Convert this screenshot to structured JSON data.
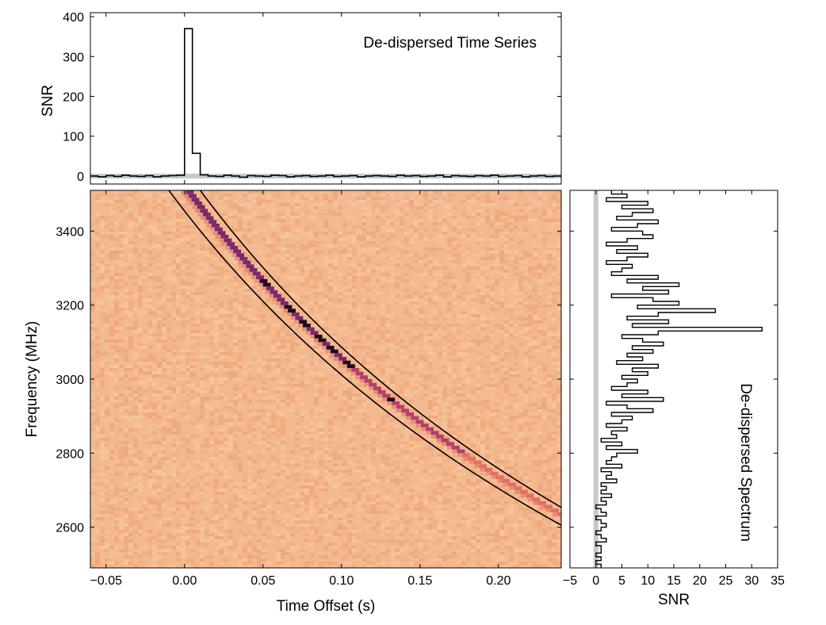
{
  "chart_data": [
    {
      "panel": "time-series",
      "type": "line",
      "title": "De-dispersed Time Series",
      "ylabel": "SNR",
      "xlim": [
        -0.06,
        0.24
      ],
      "ylim": [
        -20,
        410
      ],
      "yticks": [
        0,
        100,
        200,
        300,
        400
      ],
      "step": 0.005,
      "x": [
        -0.06,
        -0.055,
        -0.05,
        -0.045,
        -0.04,
        -0.035,
        -0.03,
        -0.025,
        -0.02,
        -0.015,
        -0.01,
        -0.005,
        0.0,
        0.005,
        0.01,
        0.015,
        0.02,
        0.025,
        0.03,
        0.035,
        0.04,
        0.045,
        0.05,
        0.055,
        0.06,
        0.065,
        0.07,
        0.075,
        0.08,
        0.085,
        0.09,
        0.095,
        0.1,
        0.105,
        0.11,
        0.115,
        0.12,
        0.125,
        0.13,
        0.135,
        0.14,
        0.145,
        0.15,
        0.155,
        0.16,
        0.165,
        0.17,
        0.175,
        0.18,
        0.185,
        0.19,
        0.195,
        0.2,
        0.205,
        0.21,
        0.215,
        0.22,
        0.225,
        0.23,
        0.235
      ],
      "y": [
        0,
        -2,
        1,
        -1,
        2,
        0,
        -1,
        1,
        -2,
        0,
        1,
        2,
        370,
        57,
        3,
        0,
        -1,
        2,
        0,
        -3,
        1,
        0,
        -1,
        2,
        1,
        -2,
        0,
        1,
        -1,
        0,
        2,
        -1,
        0,
        1,
        -2,
        0,
        1,
        0,
        -1,
        2,
        0,
        1,
        -1,
        0,
        2,
        -2,
        1,
        0,
        -1,
        1,
        0,
        2,
        -1,
        0,
        1,
        -2,
        0,
        1,
        -1,
        0
      ]
    },
    {
      "panel": "waterfall",
      "type": "heatmap",
      "xlabel": "Time Offset (s)",
      "ylabel": "Frequency (MHz)",
      "xlim": [
        -0.06,
        0.24
      ],
      "ylim": [
        2490,
        3510
      ],
      "xticks": [
        -0.05,
        0.0,
        0.05,
        0.1,
        0.15,
        0.2
      ],
      "xtick_labels": [
        "−0.05",
        "0.00",
        "0.05",
        "0.10",
        "0.15",
        "0.20"
      ],
      "yticks": [
        2600,
        2800,
        3000,
        3200,
        3400
      ],
      "dispersion_reference_mhz": 3510,
      "dispersion_delay_s_at_ref": 0.0,
      "dispersion_constant_s_mhz2": 3780000,
      "pulse_width_s": 0.005,
      "window_lines": [
        {
          "name": "lower",
          "offset_s": -0.01
        },
        {
          "name": "upper",
          "offset_s": 0.01
        }
      ],
      "bright_channels_mhz": [
        3260,
        3190,
        3150,
        3110,
        3080,
        3040,
        2945
      ]
    },
    {
      "panel": "spectrum",
      "type": "line",
      "title": "De-dispersed Spectrum",
      "xlabel": "SNR",
      "xlim": [
        -5,
        35
      ],
      "xticks": [
        -5,
        0,
        5,
        10,
        15,
        20,
        25,
        30,
        35
      ],
      "xtick_labels": [
        "−5",
        "0",
        "5",
        "10",
        "15",
        "20",
        "25",
        "30",
        "35"
      ],
      "ylim": [
        2490,
        3510
      ],
      "freq_step_mhz": 10,
      "freq_mhz": [
        3505,
        3495,
        3485,
        3475,
        3465,
        3455,
        3445,
        3435,
        3425,
        3415,
        3405,
        3395,
        3385,
        3375,
        3365,
        3355,
        3345,
        3335,
        3325,
        3315,
        3305,
        3295,
        3285,
        3275,
        3265,
        3255,
        3245,
        3235,
        3225,
        3215,
        3205,
        3195,
        3185,
        3175,
        3165,
        3155,
        3145,
        3135,
        3125,
        3115,
        3105,
        3095,
        3085,
        3075,
        3065,
        3055,
        3045,
        3035,
        3025,
        3015,
        3005,
        2995,
        2985,
        2975,
        2965,
        2955,
        2945,
        2935,
        2925,
        2915,
        2905,
        2895,
        2885,
        2875,
        2865,
        2855,
        2845,
        2835,
        2825,
        2815,
        2805,
        2795,
        2785,
        2775,
        2765,
        2755,
        2745,
        2735,
        2725,
        2715,
        2705,
        2695,
        2685,
        2675,
        2665,
        2655,
        2645,
        2635,
        2625,
        2615,
        2605,
        2595,
        2585,
        2575,
        2565,
        2555,
        2545,
        2535,
        2525,
        2515,
        2505,
        2495
      ],
      "snr": [
        3,
        6,
        2,
        10,
        5,
        11,
        7,
        4,
        12,
        8,
        3,
        9,
        11,
        6,
        2,
        8,
        4,
        10,
        6,
        2,
        7,
        5,
        3,
        12,
        6,
        16,
        9,
        14,
        3,
        11,
        16,
        8,
        23,
        12,
        6,
        14,
        7,
        32,
        12,
        5,
        9,
        13,
        7,
        11,
        6,
        9,
        4,
        12,
        7,
        10,
        5,
        8,
        6,
        3,
        10,
        5,
        13,
        2,
        6,
        11,
        3,
        7,
        5,
        2,
        6,
        3,
        4,
        1,
        5,
        2,
        8,
        4,
        3,
        2,
        5,
        1,
        3,
        2,
        4,
        1,
        2,
        1,
        3,
        1,
        2,
        0,
        1,
        2,
        0,
        1,
        2,
        1,
        0,
        1,
        2,
        0,
        1,
        1,
        0,
        1,
        0,
        1
      ]
    }
  ]
}
